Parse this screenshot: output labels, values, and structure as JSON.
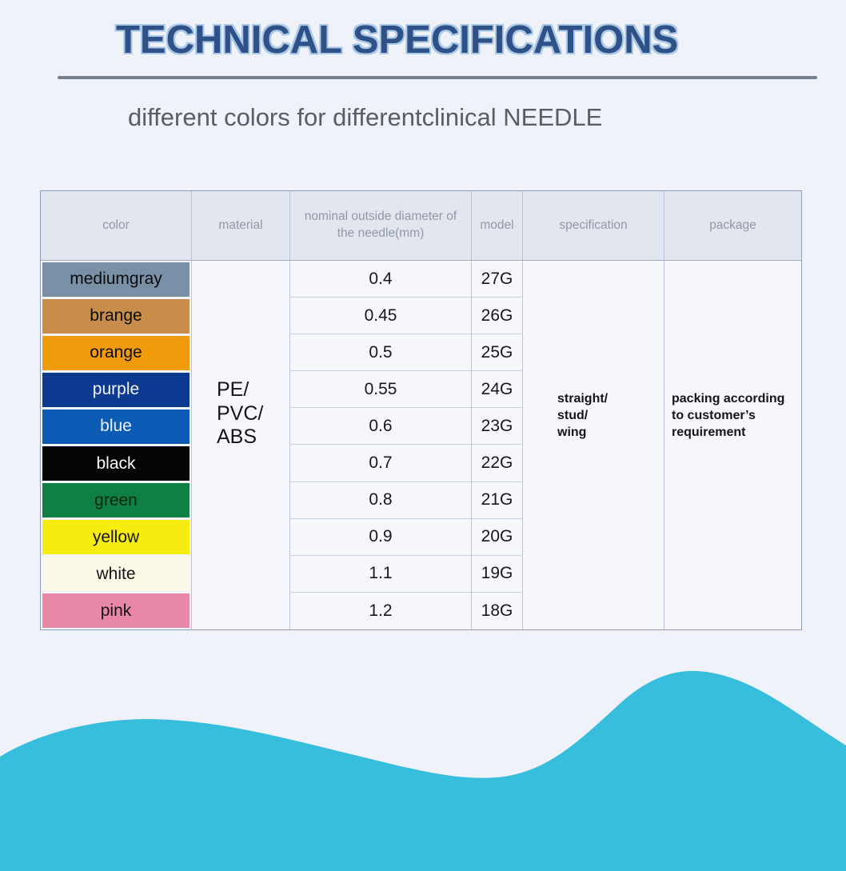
{
  "page": {
    "title": "TECHNICAL SPECIFICATIONS",
    "subtitle": "different colors for differentclinical NEEDLE"
  },
  "colors": {
    "page_bg": "#eff2f8",
    "title_fill": "#2e5187",
    "title_outline": "#abc8e6",
    "divider": "#76818f",
    "header_bg": "#e2e6ef",
    "cell_bg": "#f6f7fb",
    "grid_border": "#b9c3da",
    "outer_border": "#8d9cba",
    "accent_wave": "#38bedd"
  },
  "table": {
    "headers": [
      "color",
      "material",
      "nominal outside diameter of the needle(mm)",
      "model",
      "specification",
      "package"
    ],
    "material": "PE/\nPVC/\nABS",
    "specification": "straight/\nstud/\nwing",
    "package": "packing according\nto customer’s\nrequirement",
    "rows": [
      {
        "color": "mediumgray",
        "hex": "#7a90a6",
        "text_color": "#0b0b0b",
        "diameter": "0.4",
        "model": "27G"
      },
      {
        "color": "brange",
        "hex": "#c88d4a",
        "text_color": "#0b0b0b",
        "diameter": "0.45",
        "model": "26G"
      },
      {
        "color": "orange",
        "hex": "#f09b0b",
        "text_color": "#0b0b0b",
        "diameter": "0.5",
        "model": "25G"
      },
      {
        "color": "purple",
        "hex": "#0c3a90",
        "text_color": "#f2f5fa",
        "diameter": "0.55",
        "model": "24G"
      },
      {
        "color": "blue",
        "hex": "#0c5cb5",
        "text_color": "#eaf1f9",
        "diameter": "0.6",
        "model": "23G"
      },
      {
        "color": "black",
        "hex": "#050505",
        "text_color": "#fbfbfb",
        "diameter": "0.7",
        "model": "22G"
      },
      {
        "color": "green",
        "hex": "#0e8043",
        "text_color": "#07260f",
        "diameter": "0.8",
        "model": "21G"
      },
      {
        "color": "yellow",
        "hex": "#f7ec10",
        "text_color": "#141414",
        "diameter": "0.9",
        "model": "20G"
      },
      {
        "color": "white",
        "hex": "#fbf8e8",
        "text_color": "#141414",
        "diameter": "1.1",
        "model": "19G"
      },
      {
        "color": "pink",
        "hex": "#e987a6",
        "text_color": "#141414",
        "diameter": "1.2",
        "model": "18G"
      }
    ]
  }
}
